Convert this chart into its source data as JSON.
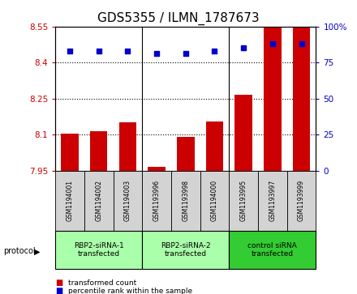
{
  "title": "GDS5355 / ILMN_1787673",
  "samples": [
    "GSM1194001",
    "GSM1194002",
    "GSM1194003",
    "GSM1193996",
    "GSM1193998",
    "GSM1194000",
    "GSM1193995",
    "GSM1193997",
    "GSM1193999"
  ],
  "bar_values": [
    8.105,
    8.115,
    8.15,
    7.965,
    8.09,
    8.155,
    8.265,
    8.545,
    8.545
  ],
  "dot_values": [
    83,
    83,
    83,
    81,
    81,
    83,
    85,
    88,
    88
  ],
  "ymin": 7.95,
  "ymax": 8.55,
  "y2min": 0,
  "y2max": 100,
  "yticks": [
    7.95,
    8.1,
    8.25,
    8.4,
    8.55
  ],
  "y2ticks": [
    0,
    25,
    50,
    75,
    100
  ],
  "bar_color": "#cc0000",
  "dot_color": "#0000cc",
  "bg_color": "#ffffff",
  "groups": [
    {
      "label": "RBP2-siRNA-1\ntransfected",
      "start": 0,
      "end": 3,
      "color": "#aaffaa"
    },
    {
      "label": "RBP2-siRNA-2\ntransfected",
      "start": 3,
      "end": 6,
      "color": "#aaffaa"
    },
    {
      "label": "control siRNA\ntransfected",
      "start": 6,
      "end": 9,
      "color": "#33cc33"
    }
  ],
  "protocol_label": "protocol",
  "legend_bar_label": "transformed count",
  "legend_dot_label": "percentile rank within the sample",
  "sample_bg_color": "#d3d3d3",
  "title_fontsize": 11
}
